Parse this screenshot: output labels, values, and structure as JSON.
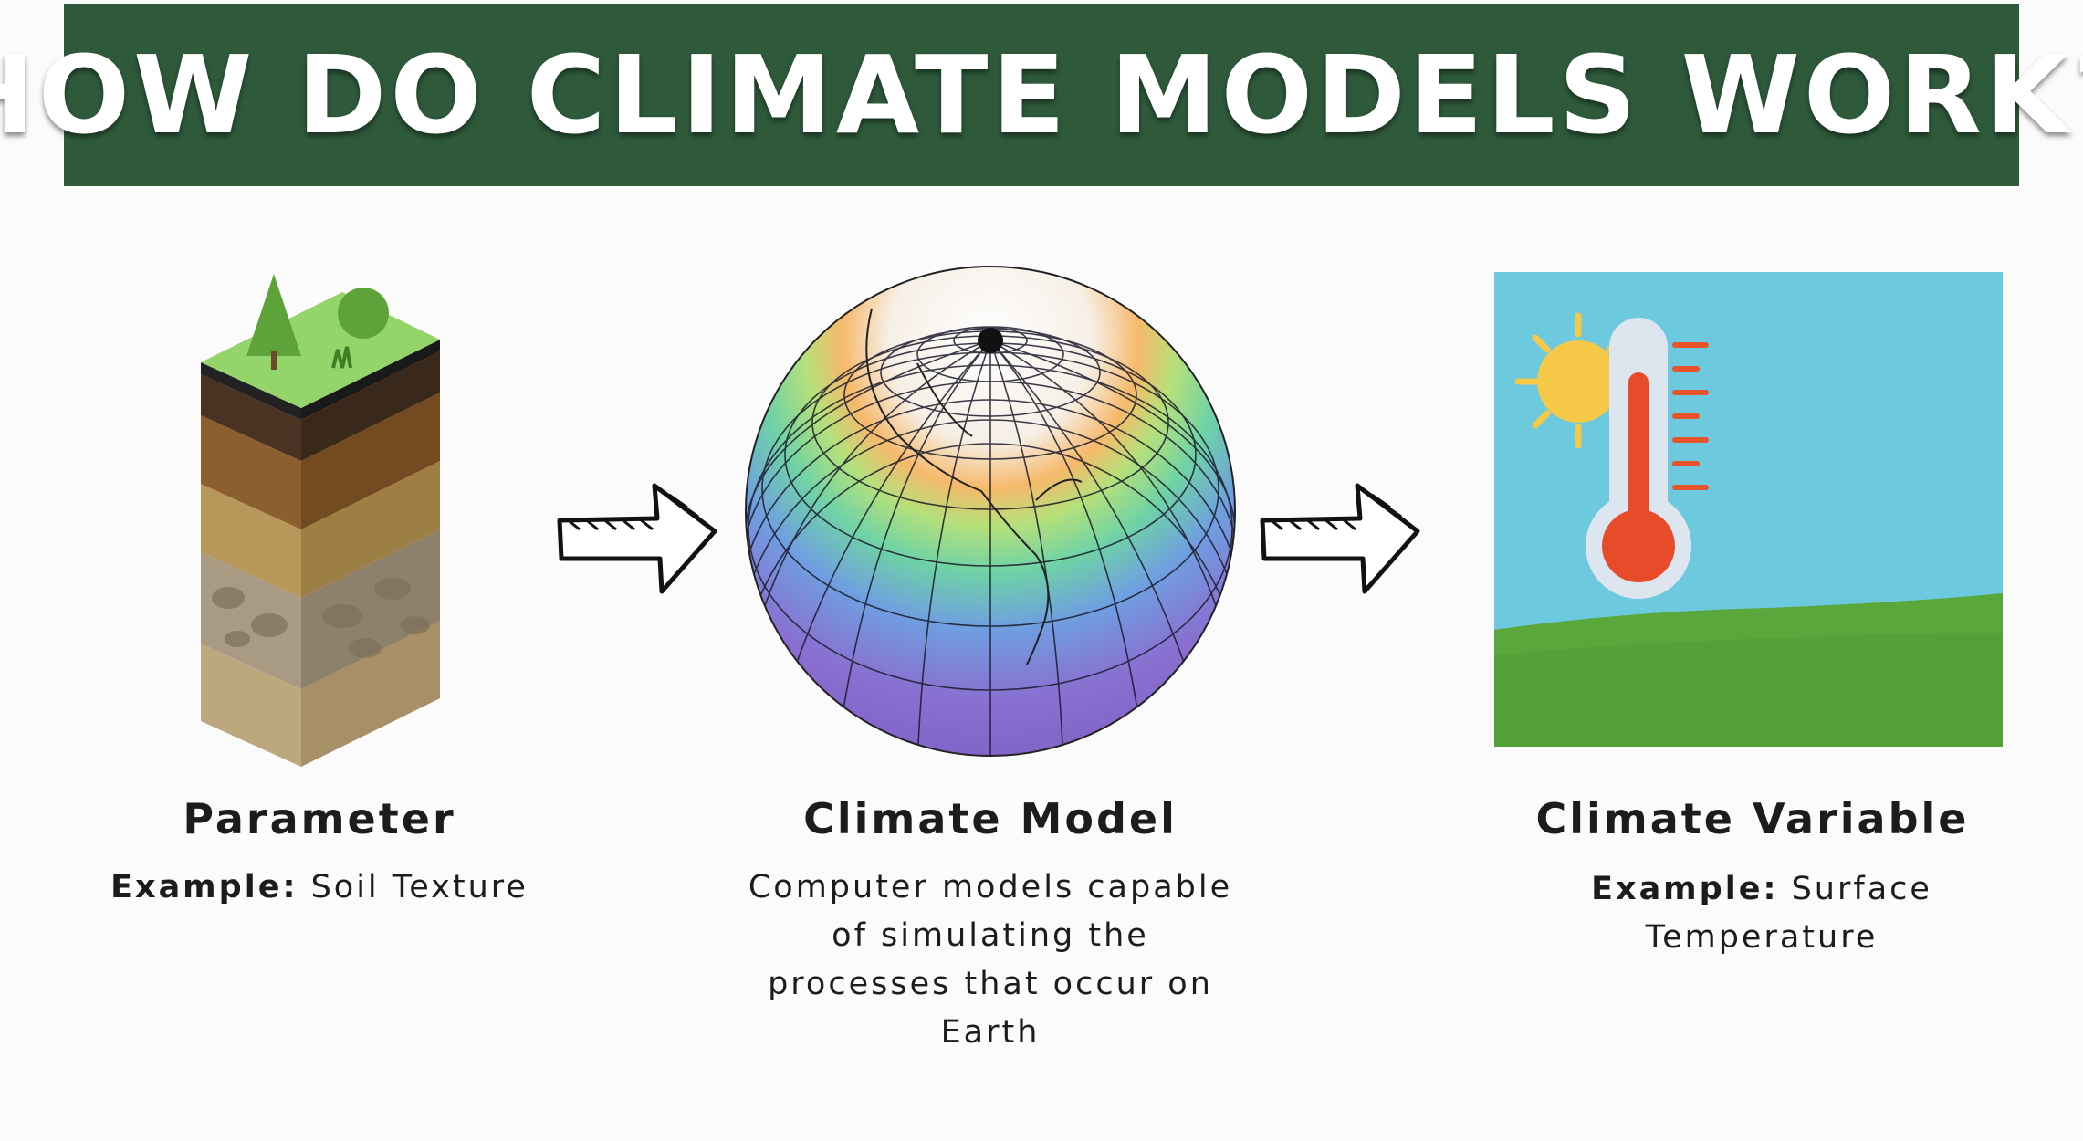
{
  "title": "HOW DO CLIMATE MODELS WORK?",
  "colors": {
    "header_bg": "#2e5a3b",
    "header_text": "#ffffff",
    "sky": "#6cc9de",
    "grass": "#5aa83c",
    "thermometer_red": "#e84b2a",
    "sun": "#f7c948"
  },
  "steps": [
    {
      "id": "parameter",
      "icon": "soil-layers-icon",
      "title": "Parameter",
      "example_label": "Example:",
      "example_value": "Soil Texture"
    },
    {
      "id": "climate-model",
      "icon": "globe-grid-icon",
      "title": "Climate Model",
      "description_lines": [
        "Computer models capable",
        "of simulating the",
        "processes that occur on",
        "Earth"
      ]
    },
    {
      "id": "climate-variable",
      "icon": "thermometer-landscape-icon",
      "title": "Climate Variable",
      "example_label": "Example:",
      "example_value_lines": [
        "Surface",
        "Temperature"
      ]
    }
  ],
  "connectors": [
    "right-arrow-icon",
    "right-arrow-icon"
  ]
}
